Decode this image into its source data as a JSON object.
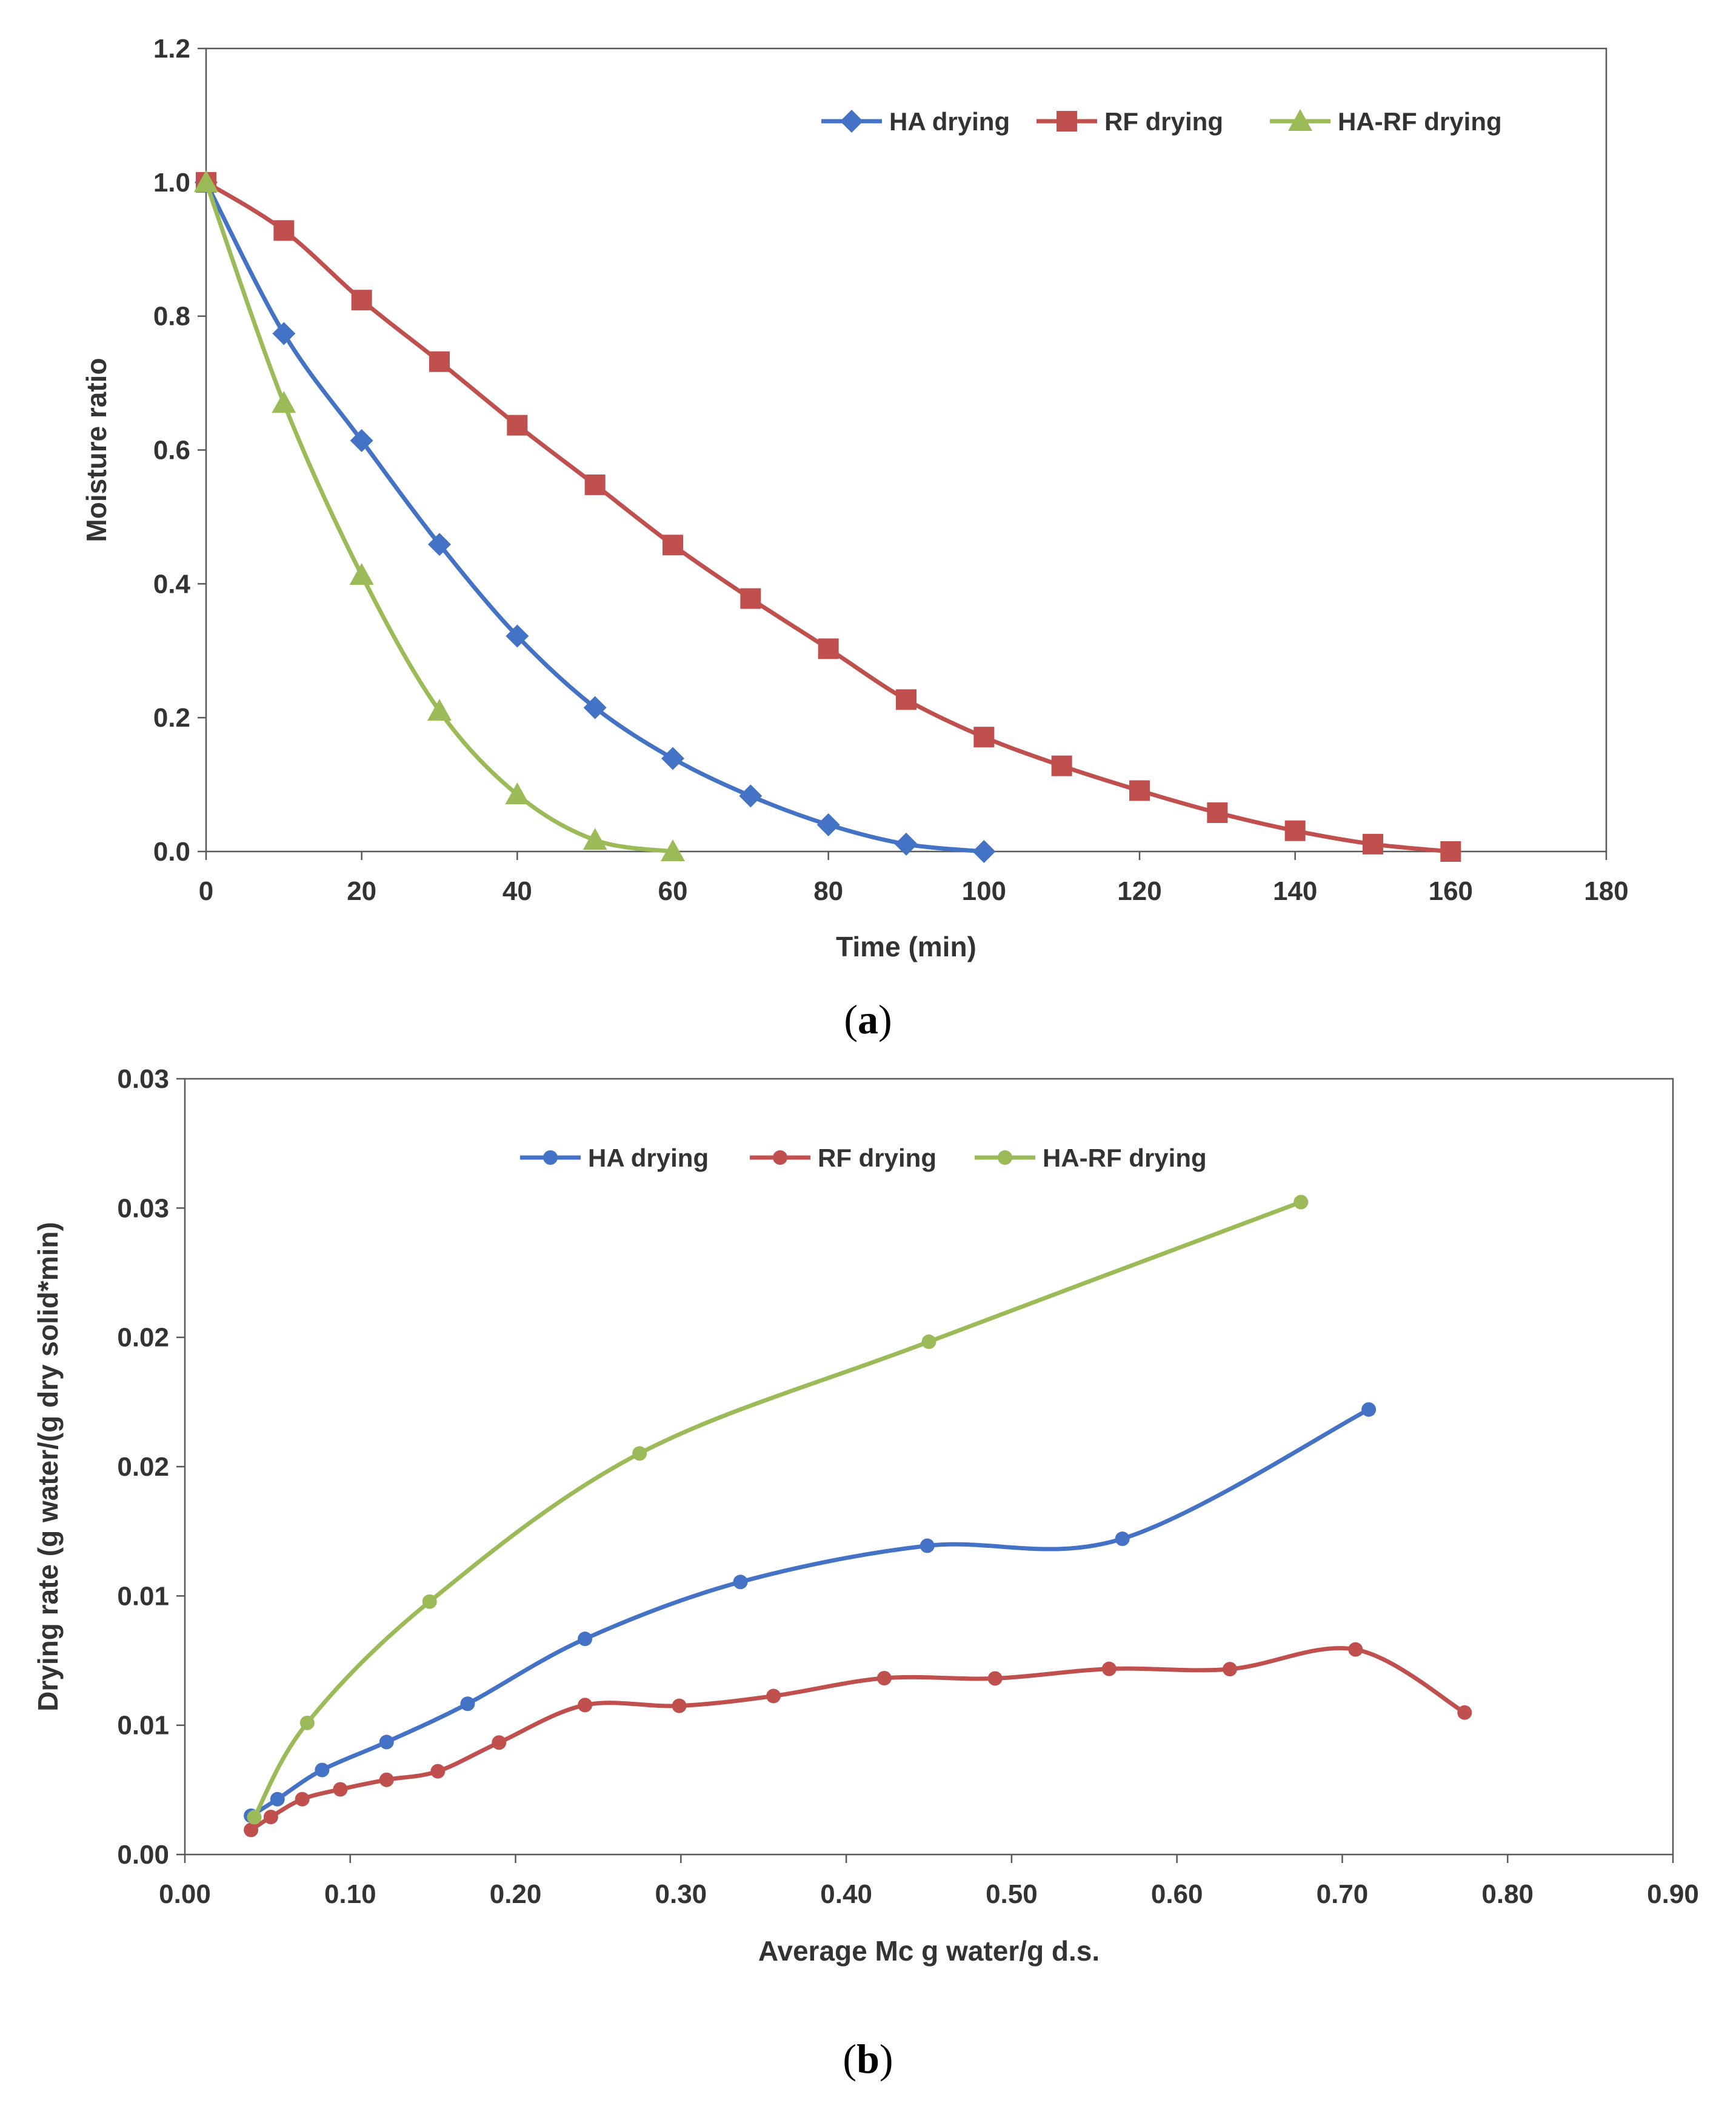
{
  "chart_data": [
    {
      "id": "a",
      "type": "line",
      "panel_label": "a",
      "title": "",
      "xlabel": "Time (min)",
      "ylabel": "Moisture ratio",
      "xlim": [
        0,
        180
      ],
      "ylim": [
        0,
        1.2
      ],
      "xticks": [
        0,
        20,
        40,
        60,
        80,
        100,
        120,
        140,
        160,
        180
      ],
      "yticks": [
        0.0,
        0.2,
        0.4,
        0.6,
        0.8,
        1.0,
        1.2
      ],
      "xtick_labels": [
        "0",
        "20",
        "40",
        "60",
        "80",
        "100",
        "120",
        "140",
        "160",
        "180"
      ],
      "ytick_labels": [
        "0.0",
        "0.2",
        "0.4",
        "0.6",
        "0.8",
        "1.0",
        "1.2"
      ],
      "grid": false,
      "legend_position": "top-right",
      "series": [
        {
          "name": "HA drying",
          "color": "#4472C4",
          "marker": "diamond",
          "points": [
            [
              0,
              1.0
            ],
            [
              10,
              0.774
            ],
            [
              20,
              0.614
            ],
            [
              30,
              0.459
            ],
            [
              40,
              0.322
            ],
            [
              50,
              0.215
            ],
            [
              60,
              0.139
            ],
            [
              70,
              0.083
            ],
            [
              80,
              0.04
            ],
            [
              90,
              0.011
            ],
            [
              100,
              0.0
            ]
          ]
        },
        {
          "name": "RF drying",
          "color": "#C0504D",
          "marker": "square",
          "points": [
            [
              0,
              1.0
            ],
            [
              10,
              0.928
            ],
            [
              20,
              0.824
            ],
            [
              30,
              0.732
            ],
            [
              40,
              0.637
            ],
            [
              50,
              0.548
            ],
            [
              60,
              0.458
            ],
            [
              70,
              0.378
            ],
            [
              80,
              0.303
            ],
            [
              90,
              0.227
            ],
            [
              100,
              0.171
            ],
            [
              110,
              0.128
            ],
            [
              120,
              0.091
            ],
            [
              130,
              0.058
            ],
            [
              140,
              0.031
            ],
            [
              150,
              0.011
            ],
            [
              160,
              0.0
            ]
          ]
        },
        {
          "name": "HA-RF drying",
          "color": "#9BBB59",
          "marker": "triangle",
          "points": [
            [
              0,
              1.0
            ],
            [
              10,
              0.67
            ],
            [
              20,
              0.413
            ],
            [
              30,
              0.21
            ],
            [
              40,
              0.085
            ],
            [
              50,
              0.017
            ],
            [
              60,
              0.0
            ]
          ]
        }
      ]
    },
    {
      "id": "b",
      "type": "line",
      "panel_label": "b",
      "title": "",
      "xlabel": "Average Mc g water/g d.s.",
      "ylabel": "Drying rate  (g water/(g dry solid*min)",
      "xlim": [
        0,
        0.9
      ],
      "ylim": [
        0,
        0.03
      ],
      "xticks": [
        0.0,
        0.1,
        0.2,
        0.3,
        0.4,
        0.5,
        0.6,
        0.7,
        0.8,
        0.9
      ],
      "yticks": [
        0.0,
        0.005,
        0.01,
        0.015,
        0.02,
        0.025,
        0.03
      ],
      "xtick_labels": [
        "0.00",
        "0.10",
        "0.20",
        "0.30",
        "0.40",
        "0.50",
        "0.60",
        "0.70",
        "0.80",
        "0.90"
      ],
      "ytick_labels": [
        "0.00",
        "0.01",
        "0.01",
        "0.02",
        "0.02",
        "0.03",
        "0.03"
      ],
      "grid": false,
      "legend_position": "top-center",
      "series": [
        {
          "name": "HA drying",
          "color": "#4472C4",
          "marker": "circle",
          "points": [
            [
              0.04,
              0.0015
            ],
            [
              0.056,
              0.00214
            ],
            [
              0.083,
              0.00327
            ],
            [
              0.122,
              0.00435
            ],
            [
              0.171,
              0.00583
            ],
            [
              0.242,
              0.00834
            ],
            [
              0.336,
              0.01054
            ],
            [
              0.449,
              0.01194
            ],
            [
              0.567,
              0.01221
            ],
            [
              0.716,
              0.01721
            ]
          ]
        },
        {
          "name": "RF drying",
          "color": "#C0504D",
          "marker": "circle",
          "points": [
            [
              0.04,
              0.00095
            ],
            [
              0.052,
              0.00145
            ],
            [
              0.071,
              0.00214
            ],
            [
              0.094,
              0.00252
            ],
            [
              0.122,
              0.00289
            ],
            [
              0.153,
              0.00322
            ],
            [
              0.19,
              0.00433
            ],
            [
              0.242,
              0.00578
            ],
            [
              0.299,
              0.00575
            ],
            [
              0.356,
              0.00613
            ],
            [
              0.423,
              0.00682
            ],
            [
              0.49,
              0.00681
            ],
            [
              0.559,
              0.00718
            ],
            [
              0.632,
              0.00717
            ],
            [
              0.708,
              0.00793
            ],
            [
              0.774,
              0.00549
            ]
          ]
        },
        {
          "name": "HA-RF drying",
          "color": "#9BBB59",
          "marker": "circle",
          "points": [
            [
              0.042,
              0.00144
            ],
            [
              0.074,
              0.00509
            ],
            [
              0.148,
              0.00978
            ],
            [
              0.275,
              0.01551
            ],
            [
              0.45,
              0.01983
            ],
            [
              0.675,
              0.02523
            ]
          ]
        }
      ]
    }
  ]
}
